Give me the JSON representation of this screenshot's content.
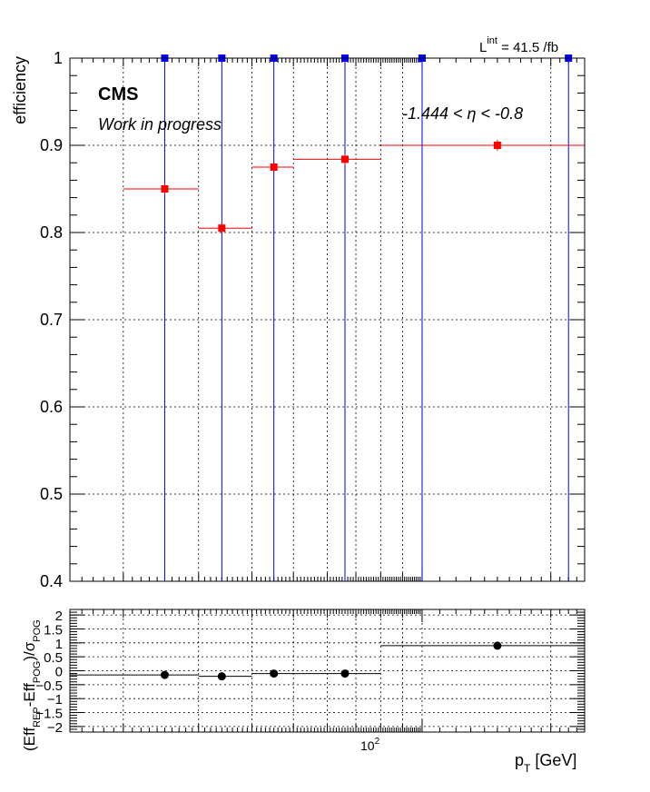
{
  "chart_data": [
    {
      "type": "scatter",
      "xscale": "log",
      "xlim": [
        15,
        240
      ],
      "ylim": [
        0.4,
        1.0
      ],
      "ylabel": "efficiency",
      "yticks": [
        "0.4",
        "0.5",
        "0.6",
        "0.7",
        "0.8",
        "0.9",
        "1"
      ],
      "texts": {
        "cms": "CMS",
        "wip": "Work in progress",
        "lumi_main": "L",
        "lumi_sup": "int",
        "lumi_value": " = 41.5 /fb",
        "eta_range": "-1.444 < η < -0.8"
      },
      "series": [
        {
          "color": "#ff0000",
          "points": [
            {
              "x": 25,
              "x_lo": 20,
              "x_hi": 30,
              "y": 0.85
            },
            {
              "x": 34,
              "x_lo": 30,
              "x_hi": 40,
              "y": 0.805
            },
            {
              "x": 45,
              "x_lo": 40,
              "x_hi": 50,
              "y": 0.875
            },
            {
              "x": 66,
              "x_lo": 50,
              "x_hi": 80,
              "y": 0.884
            },
            {
              "x": 150,
              "x_lo": 80,
              "x_hi": 240,
              "y": 0.9
            }
          ]
        },
        {
          "color": "#0000ff",
          "points": [
            {
              "x": 25,
              "y": 1.0,
              "y_lo": 0.4,
              "y_hi": 1.0
            },
            {
              "x": 34,
              "y": 1.0,
              "y_lo": 0.4,
              "y_hi": 1.0
            },
            {
              "x": 45,
              "y": 1.0,
              "y_lo": 0.4,
              "y_hi": 1.0
            },
            {
              "x": 66,
              "y": 1.0,
              "y_lo": 0.4,
              "y_hi": 1.0
            },
            {
              "x": 100,
              "y": 1.0,
              "y_lo": 0.4,
              "y_hi": 1.0
            },
            {
              "x": 220,
              "y": 1.0,
              "y_lo": 0.4,
              "y_hi": 1.0
            }
          ]
        }
      ]
    },
    {
      "type": "scatter",
      "xscale": "log",
      "xlim": [
        15,
        240
      ],
      "ylim": [
        -2.2,
        2.2
      ],
      "yticks": [
        "−2",
        "−1.5",
        "−1",
        "−0.5",
        "0",
        "0.5",
        "1",
        "1.5",
        "2"
      ],
      "xtick_base": "10",
      "xtick_exp": "2",
      "ylabel": {
        "p1": "(Eff",
        "s1": "REP",
        "p2": "-Eff",
        "s2": "POG",
        "p3": ")/σ",
        "s3": "POG"
      },
      "xlabel": {
        "main": "p",
        "sub": "T",
        "unit": " [GeV]"
      },
      "series": [
        {
          "color": "#000000",
          "points": [
            {
              "x": 25,
              "x_lo": 15,
              "x_hi": 30,
              "y": -0.15
            },
            {
              "x": 34,
              "x_lo": 30,
              "x_hi": 40,
              "y": -0.2
            },
            {
              "x": 45,
              "x_lo": 40,
              "x_hi": 50,
              "y": -0.1
            },
            {
              "x": 66,
              "x_lo": 50,
              "x_hi": 80,
              "y": -0.1
            },
            {
              "x": 150,
              "x_lo": 80,
              "x_hi": 240,
              "y": 0.9
            }
          ]
        }
      ]
    }
  ]
}
